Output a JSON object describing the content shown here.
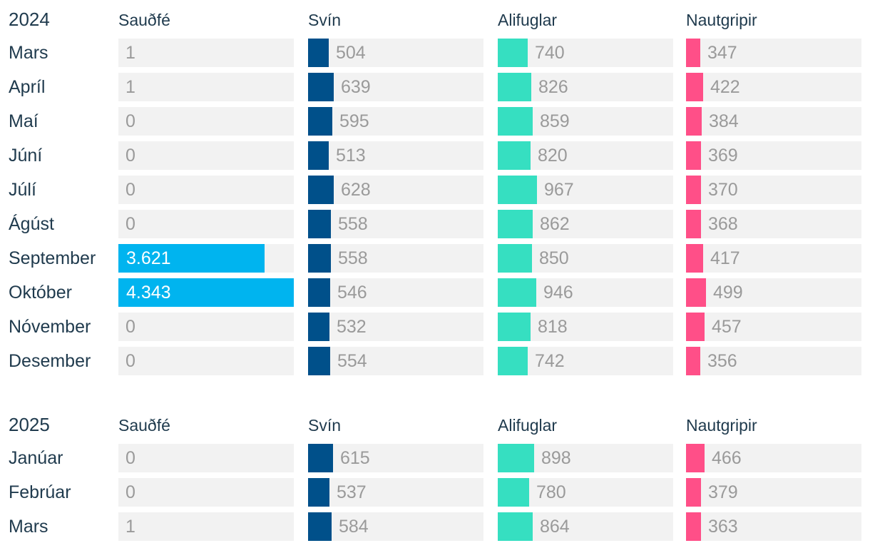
{
  "categories": [
    "Sauðfé",
    "Svín",
    "Alifuglar",
    "Nautgripir"
  ],
  "colors": {
    "Sauðfé": "#00b4ef",
    "Svín": "#00508a",
    "Alifuglar": "#36dfc1",
    "Nautgripir": "#ff4f88",
    "cell_bg": "#f2f2f2",
    "text": "#1f3a4d",
    "value_text": "#9a9a9a"
  },
  "chart_data": {
    "type": "table",
    "max_values": {
      "Sauðfé": 4343,
      "Svín": 4343,
      "Alifuglar": 4343,
      "Nautgripir": 4343
    },
    "groups": [
      {
        "year": "2024",
        "rows": [
          {
            "month": "Mars",
            "values": [
              1,
              504,
              740,
              347
            ],
            "labels": [
              "1",
              "504",
              "740",
              "347"
            ]
          },
          {
            "month": "Apríl",
            "values": [
              1,
              639,
              826,
              422
            ],
            "labels": [
              "1",
              "639",
              "826",
              "422"
            ]
          },
          {
            "month": "Maí",
            "values": [
              0,
              595,
              859,
              384
            ],
            "labels": [
              "0",
              "595",
              "859",
              "384"
            ]
          },
          {
            "month": "Júní",
            "values": [
              0,
              513,
              820,
              369
            ],
            "labels": [
              "0",
              "513",
              "820",
              "369"
            ]
          },
          {
            "month": "Júlí",
            "values": [
              0,
              628,
              967,
              370
            ],
            "labels": [
              "0",
              "628",
              "967",
              "370"
            ]
          },
          {
            "month": "Ágúst",
            "values": [
              0,
              558,
              862,
              368
            ],
            "labels": [
              "0",
              "558",
              "862",
              "368"
            ]
          },
          {
            "month": "September",
            "values": [
              3621,
              558,
              850,
              417
            ],
            "labels": [
              "3.621",
              "558",
              "850",
              "417"
            ]
          },
          {
            "month": "Október",
            "values": [
              4343,
              546,
              946,
              499
            ],
            "labels": [
              "4.343",
              "546",
              "946",
              "499"
            ]
          },
          {
            "month": "Nóvember",
            "values": [
              0,
              532,
              818,
              457
            ],
            "labels": [
              "0",
              "532",
              "818",
              "457"
            ]
          },
          {
            "month": "Desember",
            "values": [
              0,
              554,
              742,
              356
            ],
            "labels": [
              "0",
              "554",
              "742",
              "356"
            ]
          }
        ]
      },
      {
        "year": "2025",
        "rows": [
          {
            "month": "Janúar",
            "values": [
              0,
              615,
              898,
              466
            ],
            "labels": [
              "0",
              "615",
              "898",
              "466"
            ]
          },
          {
            "month": "Febrúar",
            "values": [
              0,
              537,
              780,
              379
            ],
            "labels": [
              "0",
              "537",
              "780",
              "379"
            ]
          },
          {
            "month": "Mars",
            "values": [
              1,
              584,
              864,
              363
            ],
            "labels": [
              "1",
              "584",
              "864",
              "363"
            ]
          }
        ]
      }
    ]
  }
}
